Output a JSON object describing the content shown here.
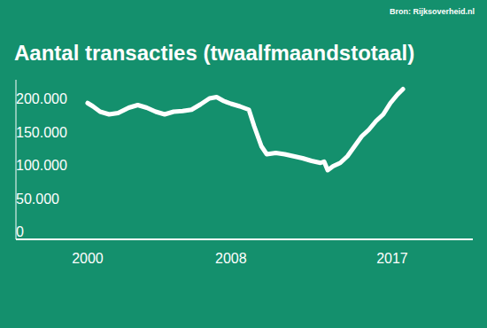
{
  "chart_data": {
    "type": "line",
    "title": "Aantal transacties (twaalfmaandstotaal)",
    "source": "Bron: Rijksoverheid.nl",
    "x": [
      2000,
      2000.3,
      2000.7,
      2001.2,
      2001.7,
      2002.3,
      2002.8,
      2003.3,
      2003.8,
      2004.3,
      2004.8,
      2005.3,
      2005.8,
      2006.3,
      2006.8,
      2007.2,
      2007.6,
      2008.0,
      2008.5,
      2009.0,
      2009.3,
      2009.7,
      2010.0,
      2010.5,
      2011.0,
      2011.5,
      2012.0,
      2012.5,
      2013.0,
      2013.2,
      2013.4,
      2013.7,
      2014.1,
      2014.5,
      2014.9,
      2015.3,
      2015.7,
      2016.1,
      2016.5,
      2016.9,
      2017.3,
      2017.6
    ],
    "values": [
      205000,
      200000,
      192000,
      188000,
      190000,
      198000,
      202000,
      198000,
      192000,
      188000,
      192000,
      193000,
      195000,
      203000,
      212000,
      214000,
      208000,
      204000,
      200000,
      195000,
      170000,
      140000,
      128000,
      130000,
      128000,
      125000,
      122000,
      118000,
      115000,
      117000,
      104000,
      110000,
      115000,
      125000,
      140000,
      155000,
      165000,
      178000,
      188000,
      205000,
      218000,
      226000
    ],
    "color": "#ffffff",
    "xlim": [
      1996,
      2021.5
    ],
    "xticks": [
      2000,
      2008,
      2017
    ],
    "ylim": [
      0,
      240000
    ],
    "yticks": [
      0,
      {
        "value": 50000,
        "label": "50.000"
      },
      {
        "value": 100000,
        "label": "100.000"
      },
      {
        "value": 150000,
        "label": "150.000"
      },
      {
        "value": 200000,
        "label": "200.000"
      }
    ],
    "grid": false
  }
}
